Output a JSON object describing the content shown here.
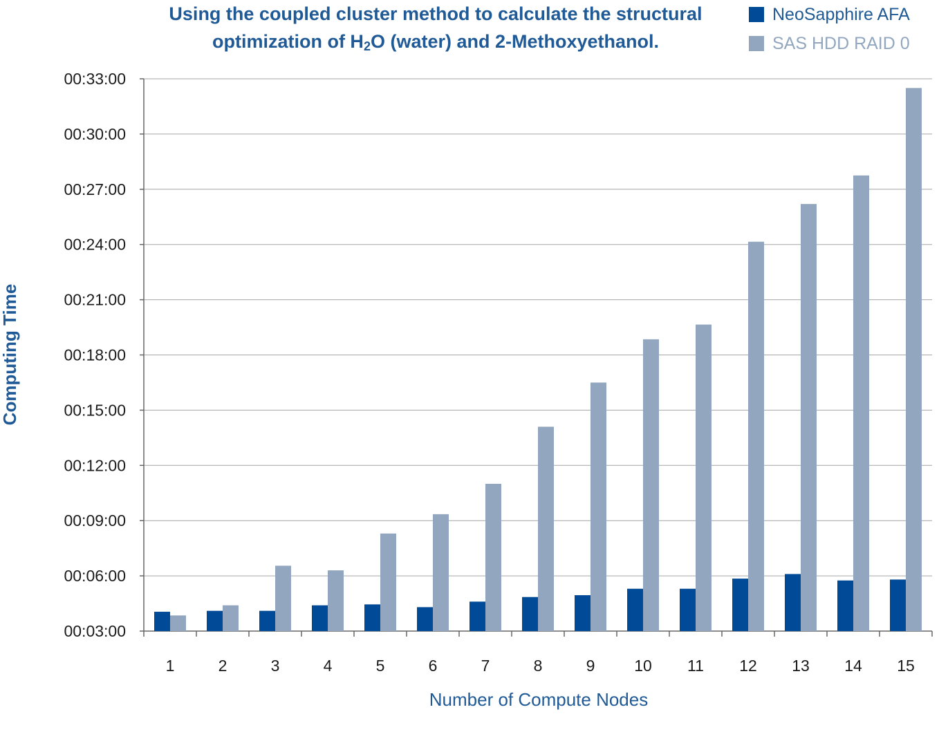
{
  "chart_data": {
    "type": "bar",
    "title_parts": {
      "line1": "Using the coupled cluster method to calculate the structural",
      "line2_before": "optimization of H",
      "line2_sub": "2",
      "line2_after": "O (water) and 2-Methoxyethanol."
    },
    "xlabel": "Number of Compute Nodes",
    "ylabel": "Computing Time",
    "categories": [
      "1",
      "2",
      "3",
      "4",
      "5",
      "6",
      "7",
      "8",
      "9",
      "10",
      "11",
      "12",
      "13",
      "14",
      "15"
    ],
    "ylim_minutes": [
      3,
      33
    ],
    "ytick_minutes": [
      3,
      6,
      9,
      12,
      15,
      18,
      21,
      24,
      27,
      30,
      33
    ],
    "ytick_labels": [
      "00:03:00",
      "00:06:00",
      "00:09:00",
      "00:12:00",
      "00:15:00",
      "00:18:00",
      "00:21:00",
      "00:24:00",
      "00:27:00",
      "00:30:00",
      "00:33:00"
    ],
    "value_units": "minutes",
    "series": [
      {
        "name": "NeoSapphire AFA",
        "color": "#004a98",
        "values": [
          4.05,
          4.1,
          4.1,
          4.4,
          4.45,
          4.3,
          4.6,
          4.85,
          4.95,
          5.3,
          5.3,
          5.85,
          6.1,
          5.75,
          5.8
        ]
      },
      {
        "name": "SAS HDD RAID 0",
        "color": "#92a7bf",
        "values": [
          3.85,
          4.4,
          6.55,
          6.3,
          8.3,
          9.35,
          11.0,
          14.1,
          16.5,
          18.85,
          19.65,
          24.15,
          26.2,
          27.75,
          32.5
        ]
      }
    ],
    "grid": true,
    "legend_position": "top-right"
  },
  "colors": {
    "title": "#1f5a96",
    "axis_label": "#1f5a96",
    "grid": "#a6a6a6",
    "axis": "#666666"
  }
}
